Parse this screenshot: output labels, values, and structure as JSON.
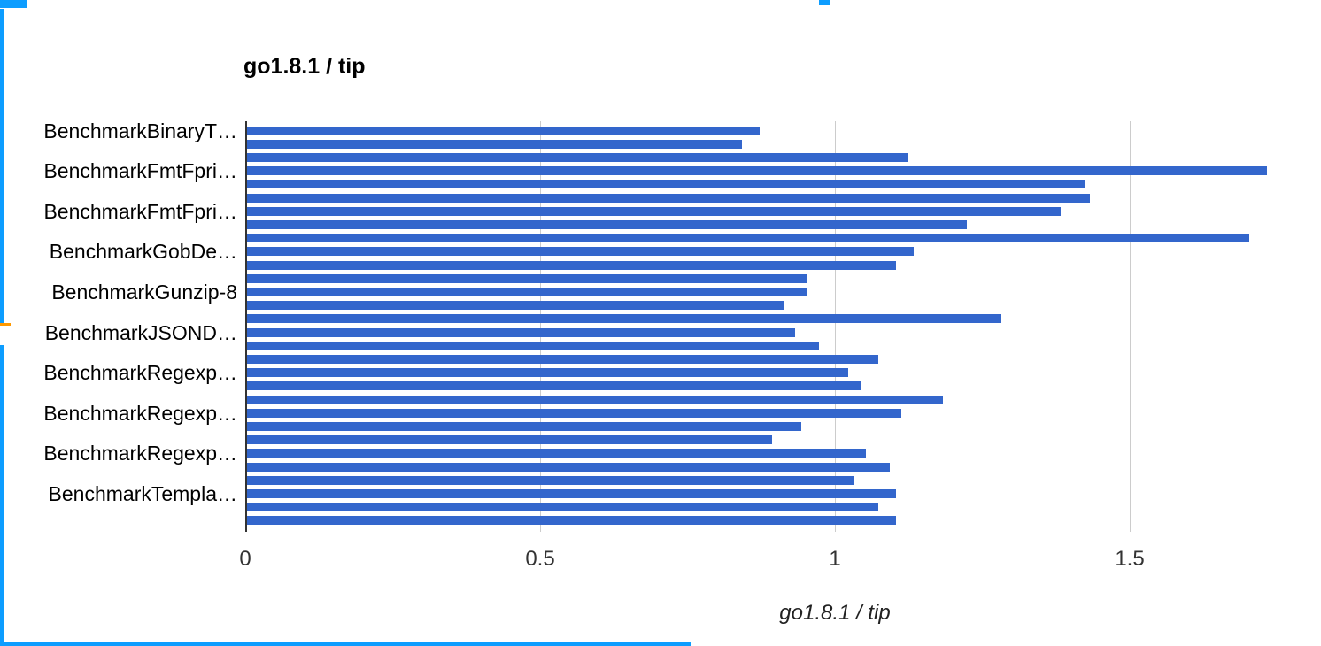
{
  "chart_data": {
    "type": "bar",
    "orientation": "horizontal",
    "title": "go1.8.1 / tip",
    "xlabel": "go1.8.1 / tip",
    "ylabel": "",
    "legend_position": "none",
    "grid": true,
    "xlim": [
      0,
      1.79
    ],
    "xtick_values": [
      0,
      0.5,
      1,
      1.5
    ],
    "xtick_labels": [
      "0",
      "0.5",
      "1",
      "1.5"
    ],
    "bar_color": "#3366cc",
    "gridline_color": "#cccccc",
    "baseline_color": "#333333",
    "row_count": 30,
    "label_row_stride": 3,
    "visible_category_labels": [
      "BenchmarkBinaryT…",
      "BenchmarkFmtFpri…",
      "BenchmarkFmtFpri…",
      "BenchmarkGobDe…",
      "BenchmarkGunzip-8",
      "BenchmarkJSOND…",
      "BenchmarkRegexp…",
      "BenchmarkRegexp…",
      "BenchmarkRegexp…",
      "BenchmarkTempla…"
    ],
    "values": [
      0.87,
      0.84,
      1.12,
      1.73,
      1.42,
      1.43,
      1.38,
      1.22,
      1.7,
      1.13,
      1.1,
      0.95,
      0.95,
      0.91,
      1.28,
      0.93,
      0.97,
      1.07,
      1.02,
      1.04,
      1.18,
      1.11,
      0.94,
      0.89,
      1.05,
      1.09,
      1.03,
      1.1,
      1.07,
      1.1
    ]
  },
  "artifacts": {
    "selection_color": "#0d9dff",
    "marker_color": "#ff9900"
  }
}
